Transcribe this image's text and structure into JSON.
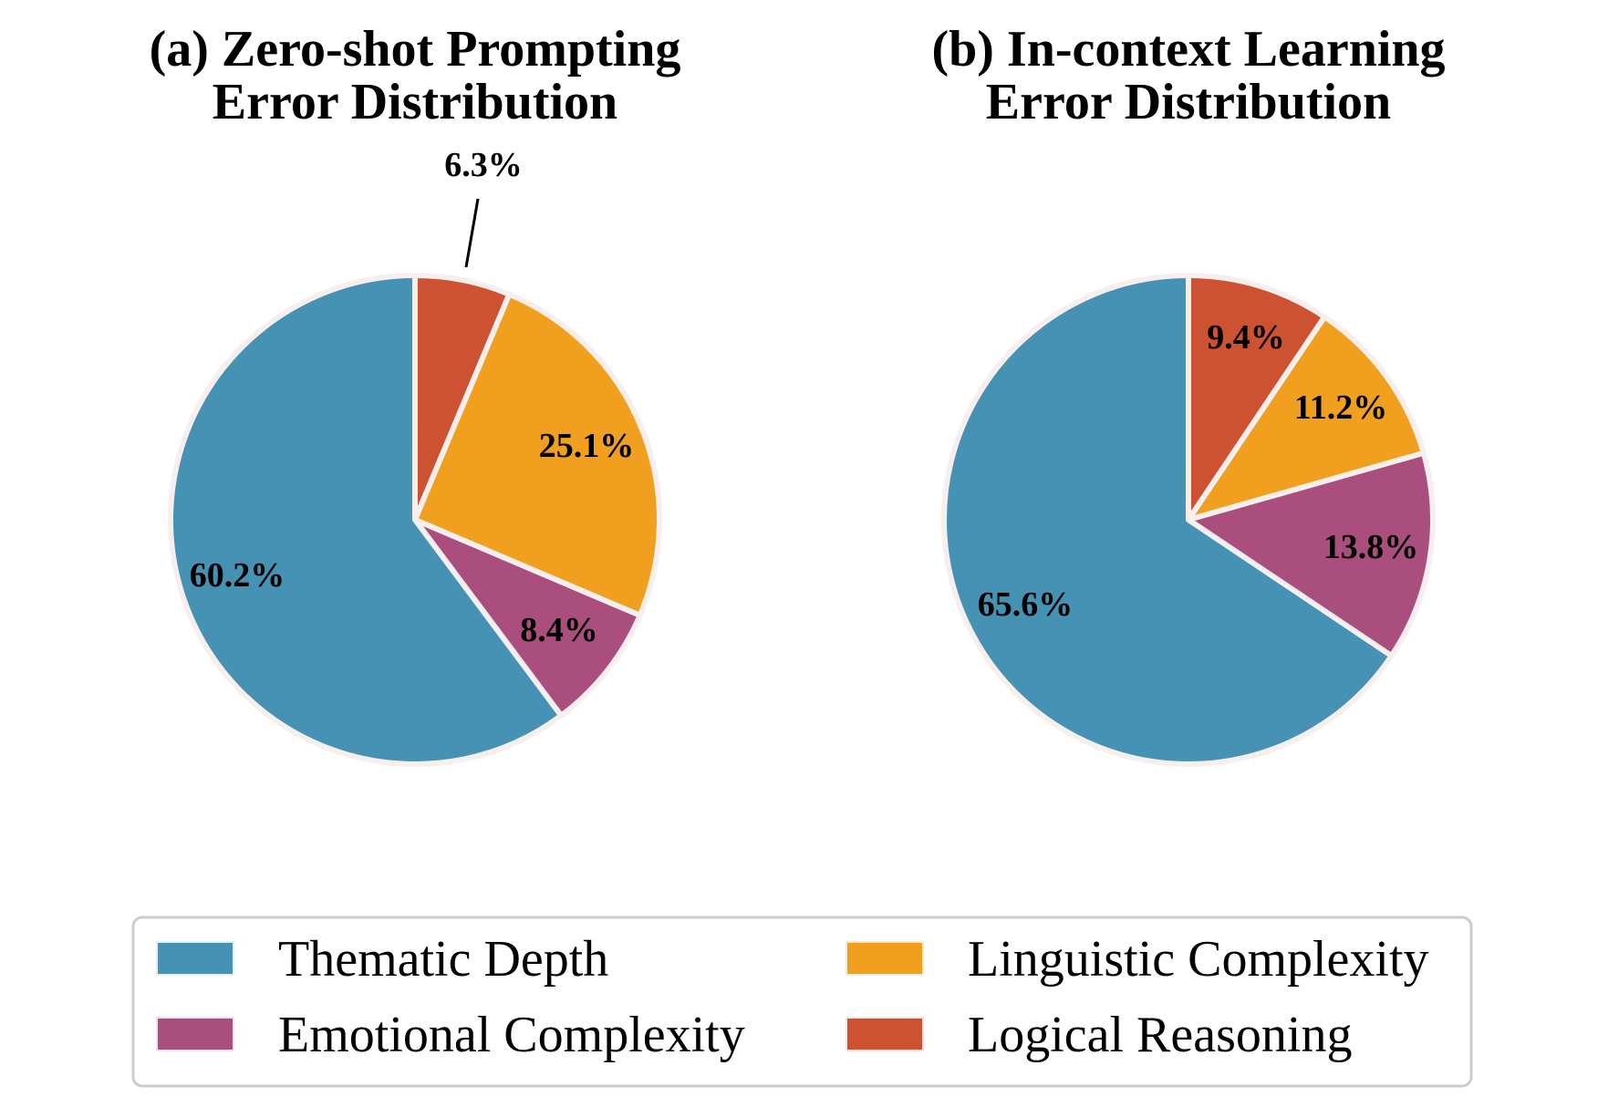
{
  "chart_data": [
    {
      "type": "pie",
      "title_line1": "(a) Zero-shot Prompting",
      "title_line2": "Error Distribution",
      "categories": [
        "Thematic Depth",
        "Emotional Complexity",
        "Linguistic Complexity",
        "Logical Reasoning"
      ],
      "values": [
        60.2,
        8.4,
        25.1,
        6.3
      ],
      "labels": [
        "60.2%",
        "8.4%",
        "25.1%",
        "6.3%"
      ]
    },
    {
      "type": "pie",
      "title_line1": "(b) In-context Learning",
      "title_line2": "Error Distribution",
      "categories": [
        "Thematic Depth",
        "Emotional Complexity",
        "Linguistic Complexity",
        "Logical Reasoning"
      ],
      "values": [
        65.6,
        13.8,
        11.2,
        9.4
      ],
      "labels": [
        "65.6%",
        "13.8%",
        "11.2%",
        "9.4%"
      ]
    }
  ],
  "legend": {
    "items": [
      {
        "label": "Thematic Depth",
        "color": "#4592B5"
      },
      {
        "label": "Linguistic Complexity",
        "color": "#F19F1E"
      },
      {
        "label": "Emotional Complexity",
        "color": "#AA4E7D"
      },
      {
        "label": "Logical Reasoning",
        "color": "#CC5232"
      }
    ]
  },
  "colors": {
    "Thematic Depth": "#4592B5",
    "Emotional Complexity": "#AA4E7D",
    "Linguistic Complexity": "#F19F1E",
    "Logical Reasoning": "#CC5232"
  }
}
